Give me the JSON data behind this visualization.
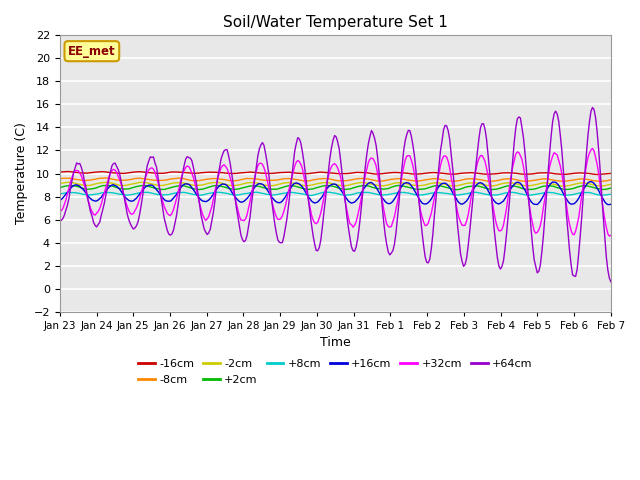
{
  "title": "Soil/Water Temperature Set 1",
  "xlabel": "Time",
  "ylabel": "Temperature (C)",
  "ylim": [
    -2,
    22
  ],
  "yticks": [
    -2,
    0,
    2,
    4,
    6,
    8,
    10,
    12,
    14,
    16,
    18,
    20,
    22
  ],
  "xtick_labels": [
    "Jan 23",
    "Jan 24",
    "Jan 25",
    "Jan 26",
    "Jan 27",
    "Jan 28",
    "Jan 29",
    "Jan 30",
    "Jan 31",
    "Feb 1",
    "Feb 2",
    "Feb 3",
    "Feb 4",
    "Feb 5",
    "Feb 6",
    "Feb 7"
  ],
  "bg_color": "#e8e8e8",
  "fig_color": "#ffffff",
  "grid_color": "#ffffff",
  "annotation_text": "EE_met",
  "annotation_bg": "#ffff99",
  "annotation_border": "#cc9900",
  "colors": {
    "-16cm": "#cc0000",
    "-8cm": "#ff8800",
    "-2cm": "#cccc00",
    "+2cm": "#00bb00",
    "+8cm": "#00cccc",
    "+16cm": "#0000dd",
    "+32cm": "#ff00ff",
    "+64cm": "#9900cc"
  },
  "num_points": 360,
  "num_days": 15
}
